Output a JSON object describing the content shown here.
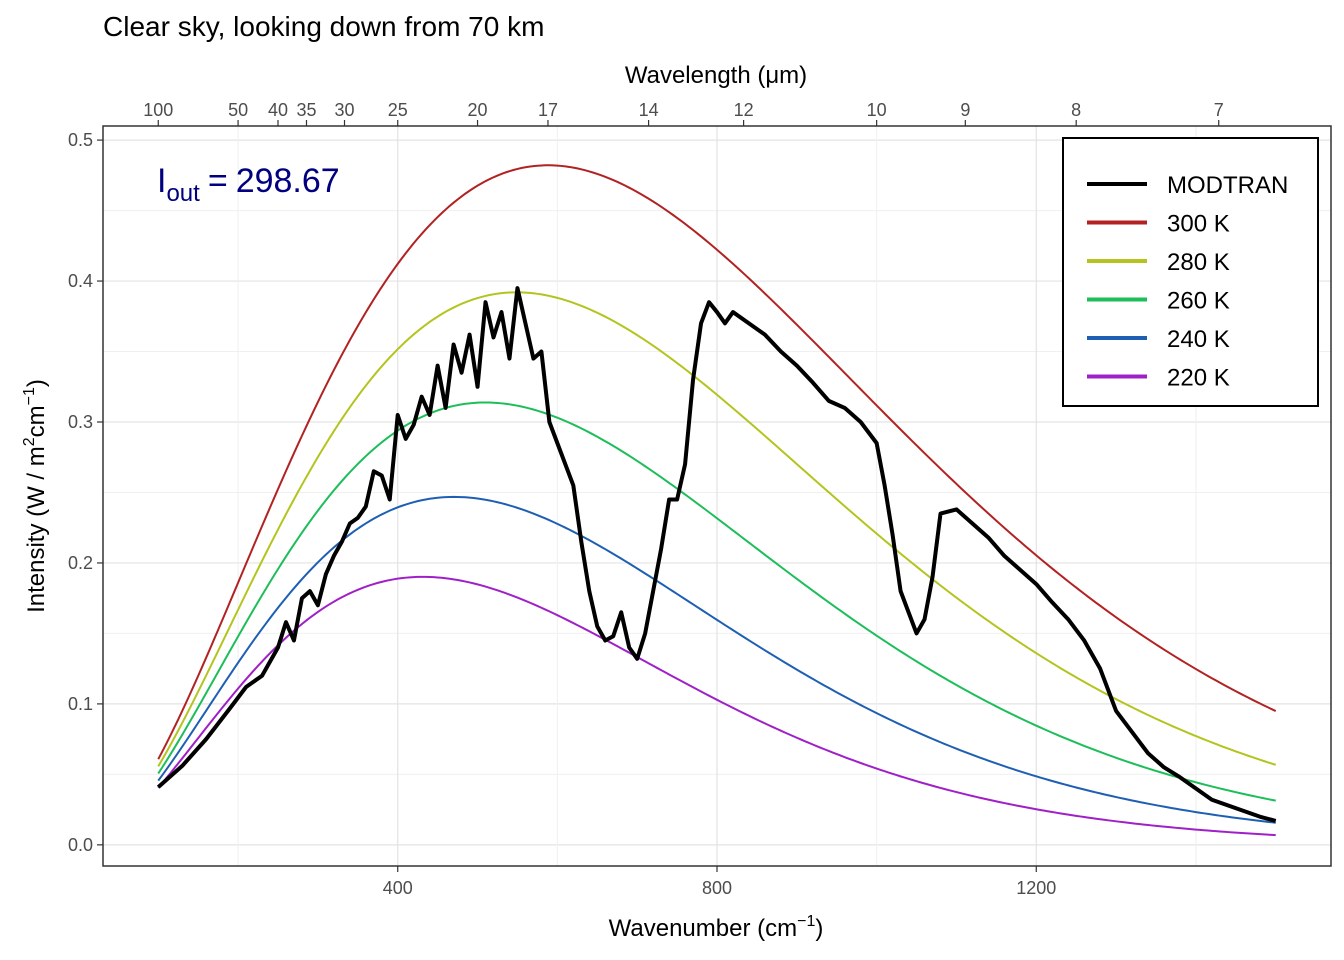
{
  "chart_data": {
    "type": "line",
    "title": "Clear sky, looking down from 70 km",
    "annotation": {
      "label_main": "I",
      "label_sub": "out",
      "equals": "=",
      "value": "298.67",
      "color": "#000080"
    },
    "x_axis": {
      "label_main": "Wavenumber (cm",
      "label_sup": "−1",
      "label_close": ")",
      "lim": [
        100,
        1500
      ],
      "ticks": [
        400,
        800,
        1200
      ],
      "minor_ticks": [
        200,
        600,
        1000,
        1400
      ]
    },
    "x_axis_top": {
      "label": "Wavelength (μm)",
      "ticks_um": [
        100,
        50,
        40,
        35,
        30,
        25,
        20,
        17,
        14,
        12,
        10,
        9,
        8,
        7
      ]
    },
    "y_axis": {
      "label_main": "Intensity (W / m",
      "label_sup1": "2",
      "label_mid": "cm",
      "label_sup2": "−1",
      "label_close": ")",
      "lim": [
        0,
        0.5
      ],
      "ticks": [
        0.0,
        0.1,
        0.2,
        0.3,
        0.4,
        0.5
      ],
      "tick_labels": [
        "0.0",
        "0.1",
        "0.2",
        "0.3",
        "0.4",
        "0.5"
      ]
    },
    "grid": true,
    "legend_position": "top-right",
    "series": [
      {
        "name": "MODTRAN",
        "color": "#000000",
        "points": [
          [
            100,
            0.041
          ],
          [
            130,
            0.056
          ],
          [
            160,
            0.075
          ],
          [
            190,
            0.097
          ],
          [
            210,
            0.112
          ],
          [
            230,
            0.12
          ],
          [
            250,
            0.14
          ],
          [
            260,
            0.158
          ],
          [
            270,
            0.145
          ],
          [
            280,
            0.175
          ],
          [
            290,
            0.18
          ],
          [
            300,
            0.17
          ],
          [
            310,
            0.192
          ],
          [
            320,
            0.205
          ],
          [
            330,
            0.215
          ],
          [
            340,
            0.228
          ],
          [
            350,
            0.232
          ],
          [
            360,
            0.24
          ],
          [
            370,
            0.265
          ],
          [
            380,
            0.262
          ],
          [
            390,
            0.245
          ],
          [
            400,
            0.305
          ],
          [
            410,
            0.288
          ],
          [
            420,
            0.298
          ],
          [
            430,
            0.318
          ],
          [
            440,
            0.305
          ],
          [
            450,
            0.34
          ],
          [
            460,
            0.31
          ],
          [
            470,
            0.355
          ],
          [
            480,
            0.335
          ],
          [
            490,
            0.362
          ],
          [
            500,
            0.325
          ],
          [
            510,
            0.385
          ],
          [
            520,
            0.36
          ],
          [
            530,
            0.378
          ],
          [
            540,
            0.345
          ],
          [
            550,
            0.395
          ],
          [
            560,
            0.37
          ],
          [
            570,
            0.345
          ],
          [
            580,
            0.35
          ],
          [
            590,
            0.3
          ],
          [
            600,
            0.285
          ],
          [
            610,
            0.27
          ],
          [
            620,
            0.255
          ],
          [
            630,
            0.215
          ],
          [
            640,
            0.18
          ],
          [
            650,
            0.155
          ],
          [
            660,
            0.145
          ],
          [
            670,
            0.148
          ],
          [
            680,
            0.165
          ],
          [
            690,
            0.14
          ],
          [
            700,
            0.132
          ],
          [
            710,
            0.15
          ],
          [
            720,
            0.18
          ],
          [
            730,
            0.21
          ],
          [
            740,
            0.245
          ],
          [
            750,
            0.245
          ],
          [
            760,
            0.27
          ],
          [
            770,
            0.33
          ],
          [
            780,
            0.37
          ],
          [
            790,
            0.385
          ],
          [
            800,
            0.378
          ],
          [
            810,
            0.37
          ],
          [
            820,
            0.378
          ],
          [
            840,
            0.37
          ],
          [
            860,
            0.362
          ],
          [
            880,
            0.35
          ],
          [
            900,
            0.34
          ],
          [
            920,
            0.328
          ],
          [
            940,
            0.315
          ],
          [
            960,
            0.31
          ],
          [
            980,
            0.3
          ],
          [
            1000,
            0.285
          ],
          [
            1010,
            0.255
          ],
          [
            1020,
            0.22
          ],
          [
            1030,
            0.18
          ],
          [
            1040,
            0.165
          ],
          [
            1050,
            0.15
          ],
          [
            1060,
            0.16
          ],
          [
            1070,
            0.19
          ],
          [
            1080,
            0.235
          ],
          [
            1100,
            0.238
          ],
          [
            1120,
            0.228
          ],
          [
            1140,
            0.218
          ],
          [
            1160,
            0.205
          ],
          [
            1180,
            0.195
          ],
          [
            1200,
            0.185
          ],
          [
            1220,
            0.172
          ],
          [
            1240,
            0.16
          ],
          [
            1260,
            0.145
          ],
          [
            1280,
            0.125
          ],
          [
            1300,
            0.095
          ],
          [
            1320,
            0.08
          ],
          [
            1340,
            0.065
          ],
          [
            1360,
            0.055
          ],
          [
            1380,
            0.048
          ],
          [
            1400,
            0.04
          ],
          [
            1420,
            0.032
          ],
          [
            1440,
            0.028
          ],
          [
            1460,
            0.024
          ],
          [
            1480,
            0.02
          ],
          [
            1500,
            0.017
          ]
        ]
      },
      {
        "name": "300 K",
        "color": "#B22222",
        "temperature": 300
      },
      {
        "name": "280 K",
        "color": "#B4C41E",
        "temperature": 280
      },
      {
        "name": "260 K",
        "color": "#1DBE5A",
        "temperature": 260
      },
      {
        "name": "240 K",
        "color": "#1E5FB4",
        "temperature": 240
      },
      {
        "name": "220 K",
        "color": "#A020C8",
        "temperature": 220
      }
    ]
  }
}
